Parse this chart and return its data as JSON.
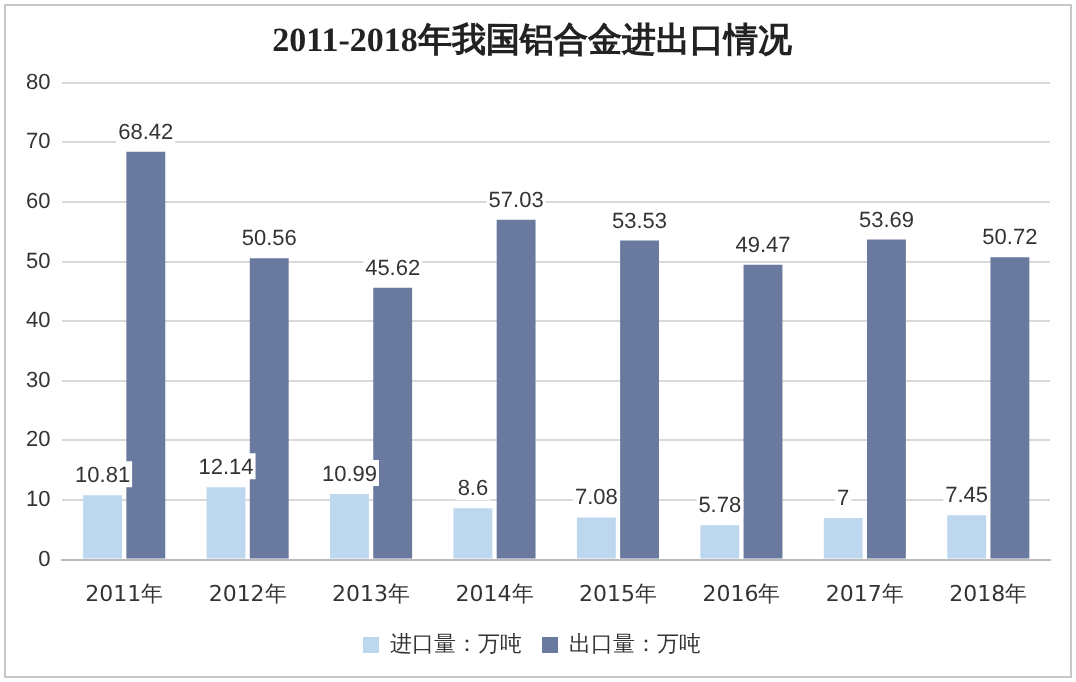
{
  "chart_data": {
    "type": "bar",
    "title": "2011-2018年我国铝合金进出口情况",
    "categories": [
      "2011年",
      "2012年",
      "2013年",
      "2014年",
      "2015年",
      "2016年",
      "2017年",
      "2018年"
    ],
    "series": [
      {
        "name": "进口量：万吨",
        "color": "#bdd7ee",
        "values": [
          10.81,
          12.14,
          10.99,
          8.6,
          7.08,
          5.78,
          7,
          7.45
        ]
      },
      {
        "name": "出口量：万吨",
        "color": "#6a7a9e",
        "values": [
          68.42,
          50.56,
          45.62,
          57.03,
          53.53,
          49.47,
          53.69,
          50.72
        ]
      }
    ],
    "ylim": [
      0,
      80
    ],
    "yticks": [
      0,
      10,
      20,
      30,
      40,
      50,
      60,
      70,
      80
    ],
    "grid": "y",
    "legend": "bottom",
    "data_labels": true
  }
}
